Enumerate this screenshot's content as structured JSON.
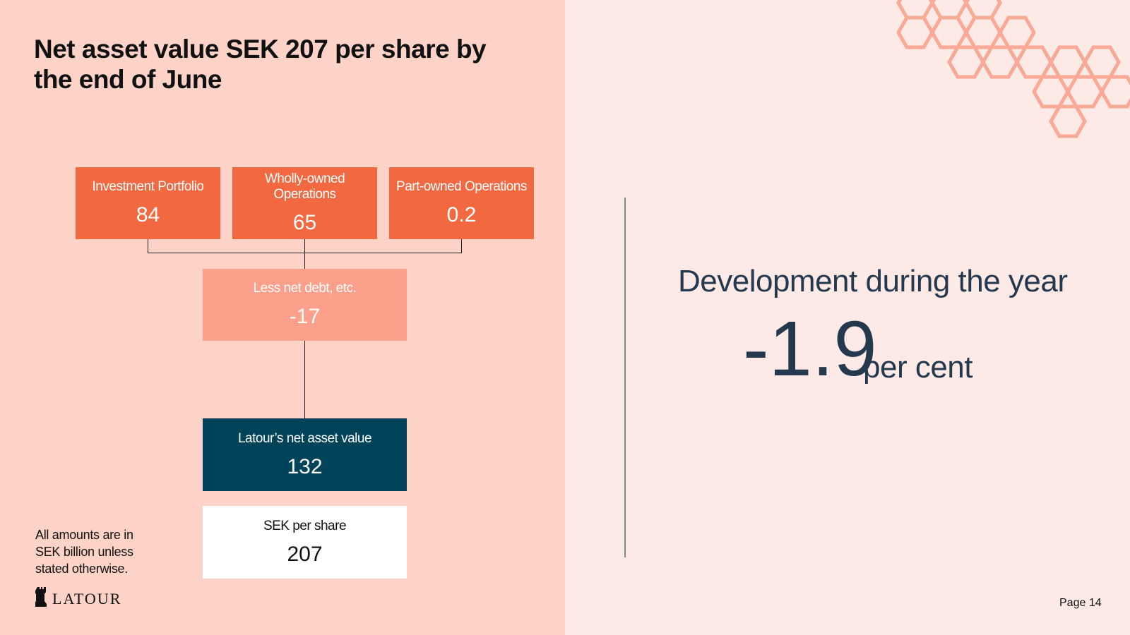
{
  "slide": {
    "title": "Net asset value SEK 207 per share by the end of June",
    "note": "All amounts are in SEK billion unless stated otherwise.",
    "logo_text": "LATOUR",
    "page_label": "Page 14"
  },
  "diagram": {
    "sources": [
      {
        "label": "Investment Portfolio",
        "value": "84"
      },
      {
        "label": "Wholly-owned Operations",
        "value": "65"
      },
      {
        "label": "Part-owned Operations",
        "value": "0.2"
      }
    ],
    "less": {
      "label": "Less net debt, etc.",
      "value": "-17"
    },
    "nav": {
      "label": "Latour’s net asset value",
      "value": "132"
    },
    "per_share": {
      "label": "SEK per share",
      "value": "207"
    }
  },
  "development": {
    "heading": "Development during the year",
    "value": "-1.9",
    "unit": "per cent"
  },
  "colors": {
    "orange": "#f26841",
    "salmon": "#fca08c",
    "navy": "#01445a",
    "text_dark": "#24394d",
    "honeycomb": "#f9a994"
  }
}
